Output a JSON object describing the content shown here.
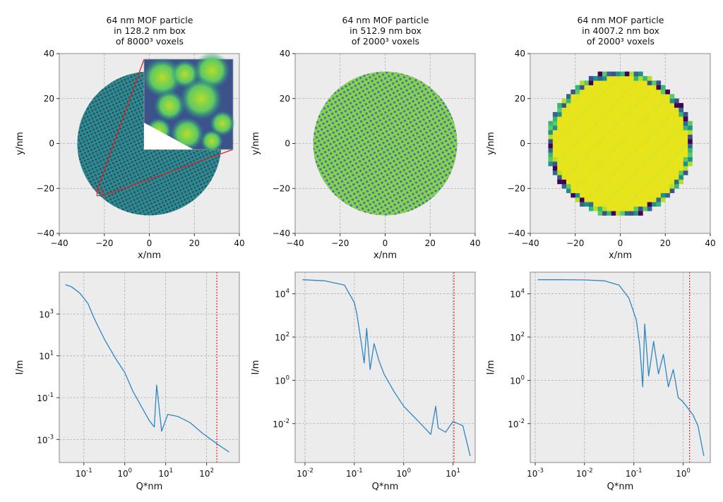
{
  "chart_data": [
    {
      "type": "image",
      "title_lines": [
        "64 nm MOF particle",
        "in 128.2 nm box",
        "of 8000³ voxels"
      ],
      "xlabel": "x/nm",
      "ylabel": "y/nm",
      "xlim": [
        -40,
        40
      ],
      "ylim": [
        -40,
        40
      ],
      "xticks": [
        -40,
        -20,
        0,
        20,
        40
      ],
      "yticks": [
        -40,
        -20,
        0,
        20,
        40
      ],
      "xtick_labels": [
        "−40",
        "−20",
        "0",
        "20",
        "40"
      ],
      "ytick_labels": [
        "−40",
        "−20",
        "0",
        "20",
        "40"
      ],
      "grid": true,
      "particle_radius": 32,
      "cutout": "quarter removed (x>0, y>0)",
      "inset_zoom": "magnified region near (-22, -22)",
      "colormap": "viridis",
      "accent": "#d62728"
    },
    {
      "type": "image",
      "title_lines": [
        "64 nm MOF particle",
        "in 512.9 nm box",
        "of 2000³ voxels"
      ],
      "xlabel": "x/nm",
      "ylabel": "y/nm",
      "xlim": [
        -40,
        40
      ],
      "ylim": [
        -40,
        40
      ],
      "xticks": [
        -40,
        -20,
        0,
        20,
        40
      ],
      "yticks": [
        -40,
        -20,
        0,
        20,
        40
      ],
      "xtick_labels": [
        "−40",
        "−20",
        "0",
        "20",
        "40"
      ],
      "ytick_labels": [
        "−40",
        "−20",
        "0",
        "20",
        "40"
      ],
      "grid": true,
      "particle_radius": 32,
      "colormap": "viridis"
    },
    {
      "type": "image",
      "title_lines": [
        "64 nm MOF particle",
        "in 4007.2 nm box",
        "of 2000³ voxels"
      ],
      "xlabel": "x/nm",
      "ylabel": "y/nm",
      "xlim": [
        -40,
        40
      ],
      "ylim": [
        -40,
        40
      ],
      "xticks": [
        -40,
        -20,
        0,
        20,
        40
      ],
      "yticks": [
        -40,
        -20,
        0,
        20,
        40
      ],
      "xtick_labels": [
        "−40",
        "−20",
        "0",
        "20",
        "40"
      ],
      "ytick_labels": [
        "−40",
        "−20",
        "0",
        "20",
        "40"
      ],
      "grid": true,
      "particle_radius": 32,
      "voxel_size_nm": 2.0,
      "colormap": "viridis"
    },
    {
      "type": "line",
      "xscale": "log",
      "yscale": "log",
      "xlabel": "Q*nm",
      "ylabel": "I/m",
      "xlim_log10": [
        -1.6,
        2.8
      ],
      "ylim_log10": [
        -4.1,
        5.0
      ],
      "xticks_log10": [
        -1,
        0,
        1,
        2
      ],
      "yticks_log10": [
        -3,
        -1,
        1,
        3
      ],
      "xtick_labels": [
        "10",
        "10",
        "10",
        "10"
      ],
      "xtick_exps": [
        "-1",
        "0",
        "1",
        "2"
      ],
      "ytick_labels": [
        "10",
        "10",
        "10",
        "10"
      ],
      "ytick_exps": [
        "-3",
        "-1",
        "1",
        "3"
      ],
      "vline_x_log10": 2.25,
      "vline_color": "#d62728",
      "line_color": "#2f86c3",
      "x_log10": [
        -1.45,
        -1.3,
        -1.1,
        -0.9,
        -0.75,
        -0.6,
        -0.5,
        -0.35,
        -0.2,
        0.0,
        0.2,
        0.4,
        0.6,
        0.72,
        0.78,
        0.9,
        1.05,
        1.3,
        1.6,
        1.9,
        2.25,
        2.55
      ],
      "y_log10": [
        4.4,
        4.3,
        4.0,
        3.5,
        2.8,
        2.2,
        1.8,
        1.3,
        0.8,
        0.2,
        -0.7,
        -1.4,
        -2.1,
        -2.4,
        -0.4,
        -2.6,
        -1.8,
        -1.9,
        -2.2,
        -2.7,
        -3.2,
        -3.6
      ]
    },
    {
      "type": "line",
      "xscale": "log",
      "yscale": "log",
      "xlabel": "Q*nm",
      "ylabel": "I/m",
      "xlim_log10": [
        -2.2,
        1.45
      ],
      "ylim_log10": [
        -3.8,
        5.0
      ],
      "xticks_log10": [
        -2,
        -1,
        0,
        1
      ],
      "yticks_log10": [
        -2,
        0,
        2,
        4
      ],
      "xtick_labels": [
        "10",
        "10",
        "10",
        "10"
      ],
      "xtick_exps": [
        "-2",
        "-1",
        "0",
        "1"
      ],
      "ytick_labels": [
        "10",
        "10",
        "10",
        "10"
      ],
      "ytick_exps": [
        "-2",
        "0",
        "2",
        "4"
      ],
      "vline_x_log10": 1.02,
      "vline_color": "#d62728",
      "line_color": "#2f86c3",
      "x_log10": [
        -2.05,
        -1.6,
        -1.2,
        -1.0,
        -0.95,
        -0.85,
        -0.8,
        -0.75,
        -0.68,
        -0.6,
        -0.5,
        -0.4,
        -0.2,
        0.0,
        0.3,
        0.55,
        0.65,
        0.7,
        0.85,
        1.0,
        1.2,
        1.35
      ],
      "y_log10": [
        4.65,
        4.6,
        4.4,
        3.6,
        3.1,
        1.6,
        0.8,
        2.4,
        0.5,
        1.7,
        0.9,
        0.3,
        -0.5,
        -1.2,
        -1.9,
        -2.5,
        -1.2,
        -2.2,
        -2.4,
        -1.9,
        -2.1,
        -3.5
      ]
    },
    {
      "type": "line",
      "xscale": "log",
      "yscale": "log",
      "xlabel": "Q*nm",
      "ylabel": "I/m",
      "xlim_log10": [
        -3.1,
        0.55
      ],
      "ylim_log10": [
        -3.8,
        5.0
      ],
      "xticks_log10": [
        -3,
        -2,
        -1,
        0
      ],
      "yticks_log10": [
        -2,
        0,
        2,
        4
      ],
      "xtick_labels": [
        "10",
        "10",
        "10",
        "10"
      ],
      "xtick_exps": [
        "-3",
        "-2",
        "-1",
        "0"
      ],
      "ytick_labels": [
        "10",
        "10",
        "10",
        "10"
      ],
      "ytick_exps": [
        "-2",
        "0",
        "2",
        "4"
      ],
      "vline_x_log10": 0.13,
      "vline_color": "#d62728",
      "line_color": "#2f86c3",
      "x_log10": [
        -2.95,
        -2.5,
        -2.0,
        -1.6,
        -1.3,
        -1.1,
        -0.95,
        -0.88,
        -0.82,
        -0.78,
        -0.7,
        -0.6,
        -0.5,
        -0.4,
        -0.3,
        -0.2,
        -0.1,
        0.0,
        0.1,
        0.2,
        0.3,
        0.42
      ],
      "y_log10": [
        4.65,
        4.65,
        4.64,
        4.6,
        4.4,
        3.8,
        2.8,
        1.6,
        -0.3,
        2.6,
        0.2,
        1.8,
        0.3,
        1.2,
        -0.3,
        0.5,
        -0.8,
        -1.0,
        -1.3,
        -1.6,
        -2.1,
        -3.5
      ]
    }
  ]
}
